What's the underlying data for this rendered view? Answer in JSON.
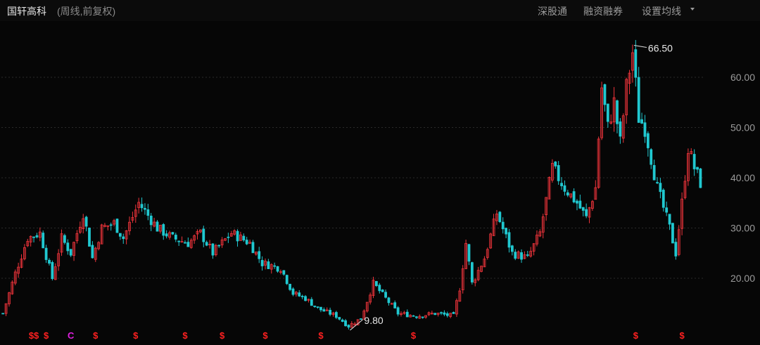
{
  "header": {
    "stock_name": "国轩高科",
    "period_note": "(周线,前复权)",
    "links": [
      "深股通",
      "融资融券",
      "设置均线"
    ]
  },
  "colors": {
    "up": "#f0343b",
    "down": "#20c8d0",
    "grid": "#2a2a2a",
    "text": "#9a9a9a",
    "marker_s": "#ff2020",
    "marker_c": "#e020e0"
  },
  "icons": {
    "ma_dropdown": "caret-down-icon"
  },
  "chart_data": {
    "type": "candlestick",
    "y_ticks": [
      20,
      30,
      40,
      50,
      60
    ],
    "y_tick_labels": [
      "20.00",
      "30.00",
      "40.00",
      "50.00",
      "60.00"
    ],
    "ylim": [
      9,
      69
    ],
    "grid": true,
    "annotations": [
      {
        "label": "66.50",
        "index": 204,
        "value": 66.5,
        "side": "right"
      },
      {
        "label": "9.80",
        "index": 112,
        "value": 9.8,
        "side": "right"
      }
    ],
    "markers": [
      {
        "label": "$$",
        "index": 10,
        "color": "s"
      },
      {
        "label": "$",
        "index": 14,
        "color": "s"
      },
      {
        "label": "C",
        "index": 22,
        "color": "c"
      },
      {
        "label": "$",
        "index": 30,
        "color": "s"
      },
      {
        "label": "$",
        "index": 43,
        "color": "s"
      },
      {
        "label": "$",
        "index": 59,
        "color": "s"
      },
      {
        "label": "$",
        "index": 71,
        "color": "s"
      },
      {
        "label": "$",
        "index": 85,
        "color": "s"
      },
      {
        "label": "$",
        "index": 103,
        "color": "s"
      },
      {
        "label": "$",
        "index": 133,
        "color": "s"
      },
      {
        "label": "$",
        "index": 205,
        "color": "s"
      },
      {
        "label": "$",
        "index": 220,
        "color": "s"
      }
    ],
    "close_anchors": [
      [
        0,
        13
      ],
      [
        4,
        21
      ],
      [
        8,
        28
      ],
      [
        12,
        29
      ],
      [
        16,
        20
      ],
      [
        19,
        28
      ],
      [
        22,
        25
      ],
      [
        26,
        33
      ],
      [
        29,
        24
      ],
      [
        32,
        30
      ],
      [
        36,
        31
      ],
      [
        39,
        28
      ],
      [
        44,
        35
      ],
      [
        50,
        30
      ],
      [
        55,
        28
      ],
      [
        60,
        27
      ],
      [
        64,
        29
      ],
      [
        68,
        25
      ],
      [
        74,
        29
      ],
      [
        80,
        27
      ],
      [
        84,
        23
      ],
      [
        90,
        22
      ],
      [
        94,
        17
      ],
      [
        98,
        16
      ],
      [
        102,
        14
      ],
      [
        108,
        12.5
      ],
      [
        112,
        10.5
      ],
      [
        116,
        12
      ],
      [
        120,
        19
      ],
      [
        124,
        16
      ],
      [
        128,
        13
      ],
      [
        134,
        12.5
      ],
      [
        140,
        13
      ],
      [
        146,
        12.5
      ],
      [
        148,
        18
      ],
      [
        150,
        27
      ],
      [
        152,
        19
      ],
      [
        156,
        24
      ],
      [
        160,
        33
      ],
      [
        165,
        25
      ],
      [
        170,
        24
      ],
      [
        174,
        29
      ],
      [
        178,
        42
      ],
      [
        182,
        38
      ],
      [
        186,
        35
      ],
      [
        189,
        32
      ],
      [
        192,
        38
      ],
      [
        194,
        58
      ],
      [
        196,
        50
      ],
      [
        198,
        55
      ],
      [
        200,
        47
      ],
      [
        202,
        58
      ],
      [
        204,
        65
      ],
      [
        206,
        52
      ],
      [
        208,
        50
      ],
      [
        212,
        38
      ],
      [
        216,
        30
      ],
      [
        218,
        25
      ],
      [
        220,
        35
      ],
      [
        222,
        46
      ],
      [
        224,
        42
      ],
      [
        226,
        39
      ]
    ]
  }
}
